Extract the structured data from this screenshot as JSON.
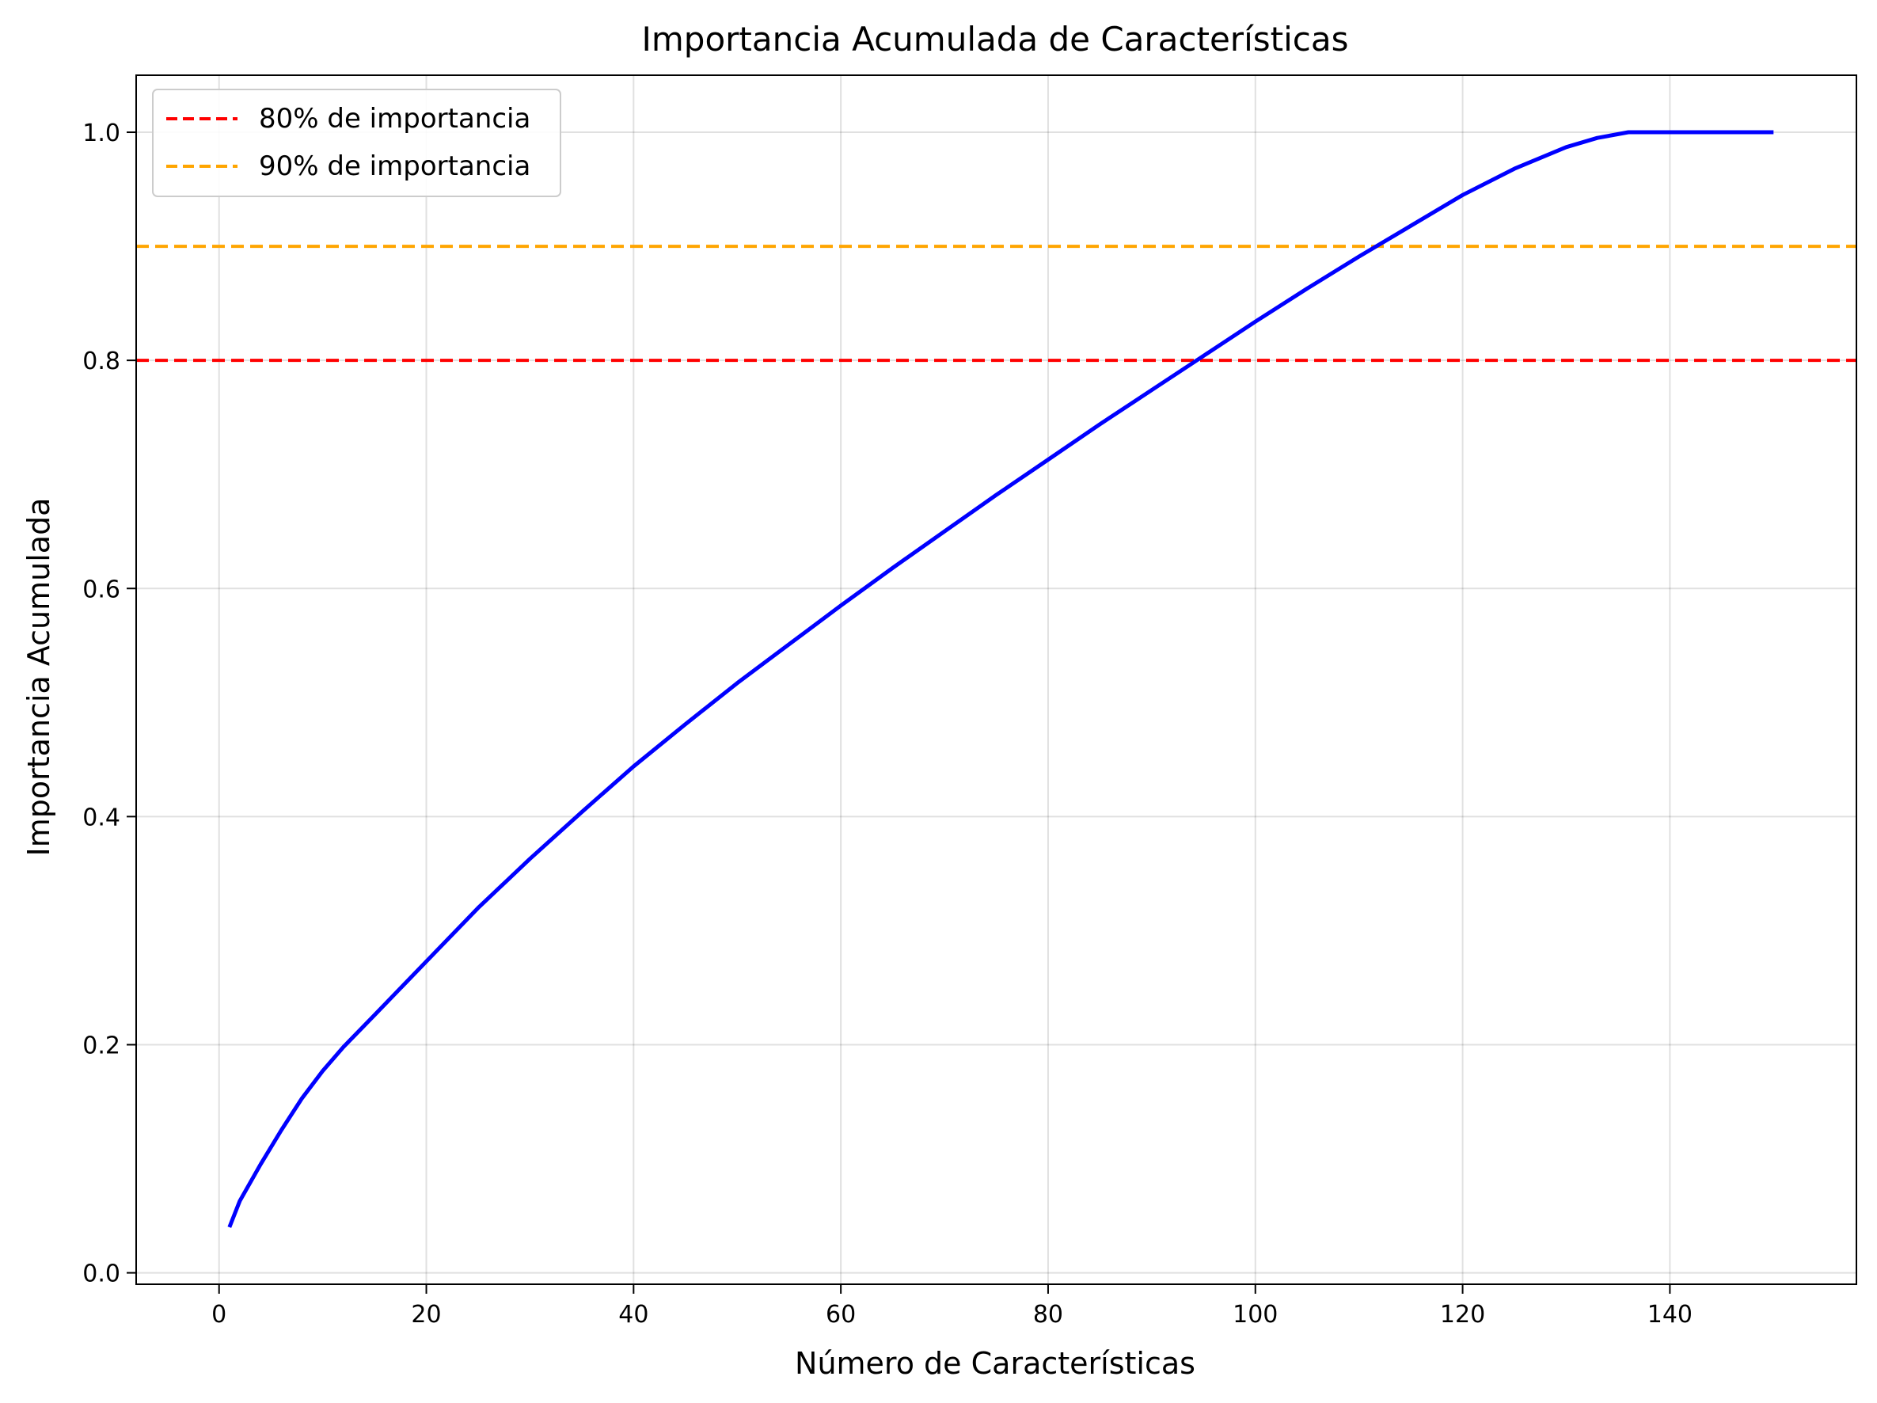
{
  "chart_data": {
    "type": "line",
    "title": "Importancia Acumulada de Características",
    "xlabel": "Número de Características",
    "ylabel": "Importancia Acumulada",
    "xlim": [
      -8,
      158
    ],
    "ylim": [
      -0.01,
      1.05
    ],
    "xticks": [
      0,
      20,
      40,
      60,
      80,
      100,
      120,
      140
    ],
    "yticks": [
      0.0,
      0.2,
      0.4,
      0.6,
      0.8,
      1.0
    ],
    "xtick_labels": [
      "0",
      "20",
      "40",
      "60",
      "80",
      "100",
      "120",
      "140"
    ],
    "ytick_labels": [
      "0.0",
      "0.2",
      "0.4",
      "0.6",
      "0.8",
      "1.0"
    ],
    "grid": true,
    "legend_position": "top-left",
    "series": [
      {
        "color": "#0000ff",
        "x": [
          1,
          2,
          4,
          6,
          8,
          10,
          12,
          15,
          20,
          25,
          30,
          35,
          40,
          45,
          50,
          55,
          60,
          65,
          70,
          75,
          80,
          85,
          90,
          95,
          100,
          105,
          110,
          115,
          120,
          125,
          130,
          133,
          136,
          140,
          145,
          150
        ],
        "y": [
          0.04,
          0.063,
          0.095,
          0.125,
          0.153,
          0.177,
          0.198,
          0.226,
          0.273,
          0.32,
          0.363,
          0.404,
          0.444,
          0.481,
          0.517,
          0.551,
          0.585,
          0.618,
          0.65,
          0.682,
          0.713,
          0.744,
          0.774,
          0.804,
          0.834,
          0.863,
          0.891,
          0.918,
          0.945,
          0.968,
          0.987,
          0.995,
          1.0,
          1.0,
          1.0,
          1.0
        ]
      }
    ],
    "hlines": [
      {
        "name": "80% de importancia",
        "y": 0.8,
        "color": "#ff0000",
        "style": "dashed"
      },
      {
        "name": "90% de importancia",
        "y": 0.9,
        "color": "#ffa500",
        "style": "dashed"
      }
    ]
  }
}
